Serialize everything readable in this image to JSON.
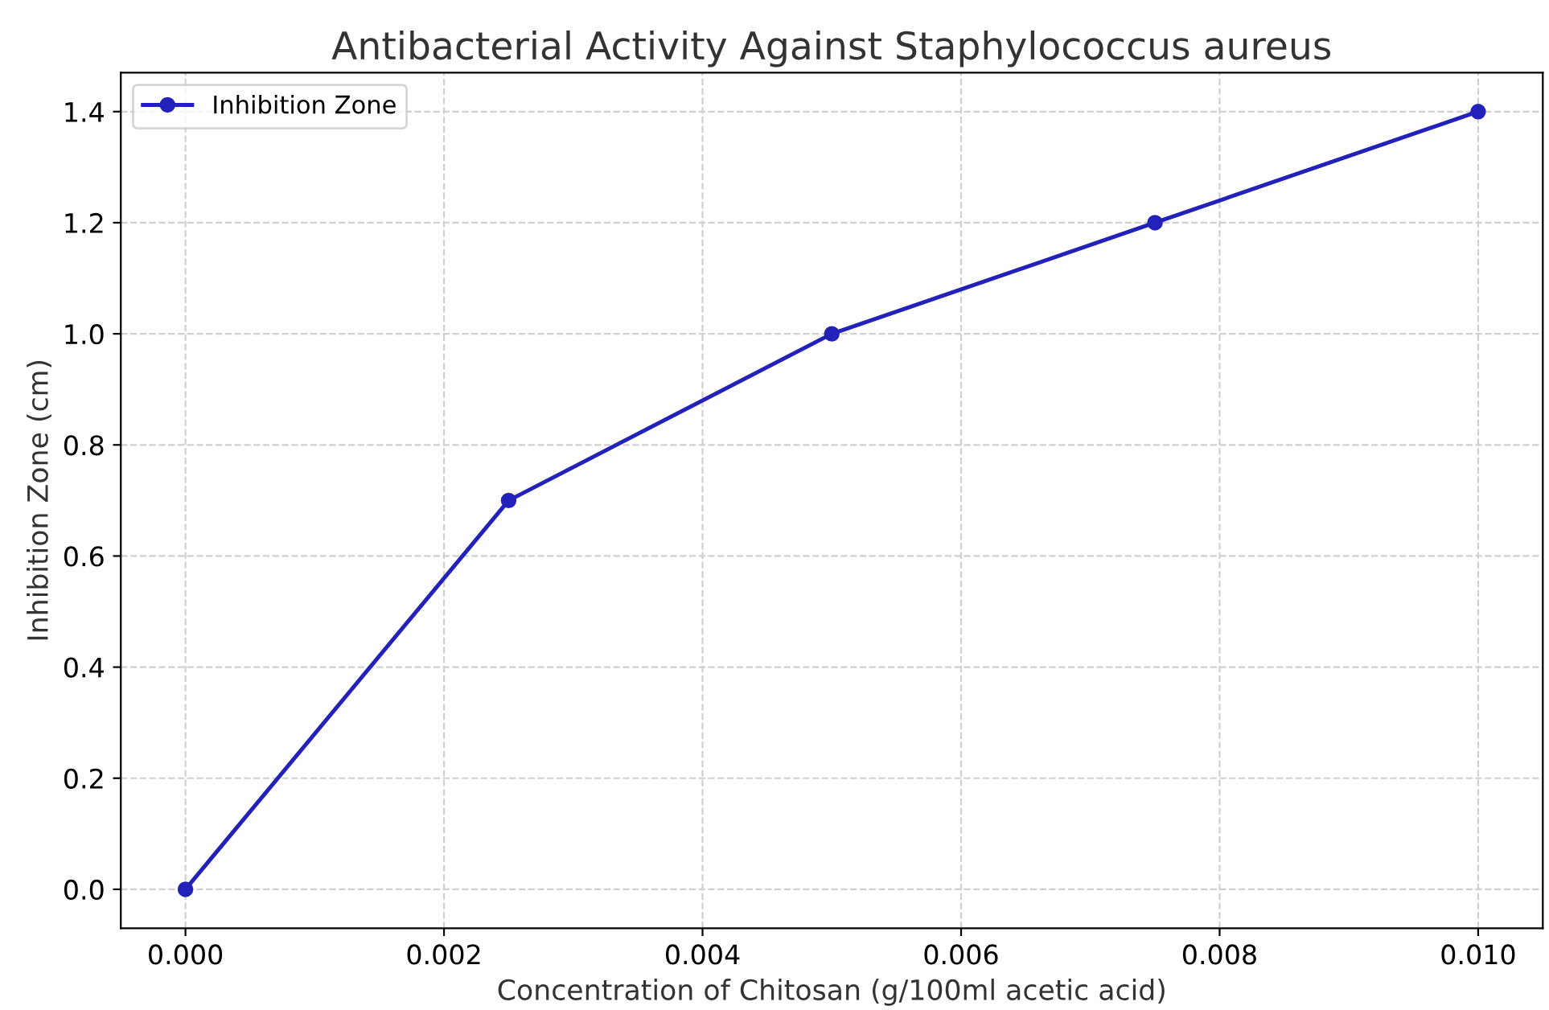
{
  "chart_data": {
    "type": "line",
    "title": "Antibacterial Activity Against Staphylococcus aureus",
    "xlabel": "Concentration of Chitosan (g/100ml acetic acid)",
    "ylabel": "Inhibition Zone (cm)",
    "x": [
      0.0,
      0.0025,
      0.005,
      0.0075,
      0.01
    ],
    "series": [
      {
        "name": "Inhibition Zone",
        "color": "#2222bb",
        "values": [
          0.0,
          0.7,
          1.0,
          1.2,
          1.4
        ]
      }
    ],
    "xlim": [
      -0.0005,
      0.0105
    ],
    "ylim": [
      -0.07,
      1.47
    ],
    "xticks": [
      {
        "value": 0,
        "label": "0.000"
      },
      {
        "value": 0.002,
        "label": "0.002"
      },
      {
        "value": 0.004,
        "label": "0.004"
      },
      {
        "value": 0.006,
        "label": "0.006"
      },
      {
        "value": 0.008,
        "label": "0.008"
      },
      {
        "value": 0.01,
        "label": "0.010"
      }
    ],
    "yticks": [
      {
        "value": 0,
        "label": "0.0"
      },
      {
        "value": 0.2,
        "label": "0.2"
      },
      {
        "value": 0.4,
        "label": "0.4"
      },
      {
        "value": 0.6,
        "label": "0.6"
      },
      {
        "value": 0.8,
        "label": "0.8"
      },
      {
        "value": 1.0,
        "label": "1.0"
      },
      {
        "value": 1.2,
        "label": "1.2"
      },
      {
        "value": 1.4,
        "label": "1.4"
      }
    ],
    "grid": true,
    "legend": "top left",
    "marker": "circle",
    "line_style": "solid"
  }
}
